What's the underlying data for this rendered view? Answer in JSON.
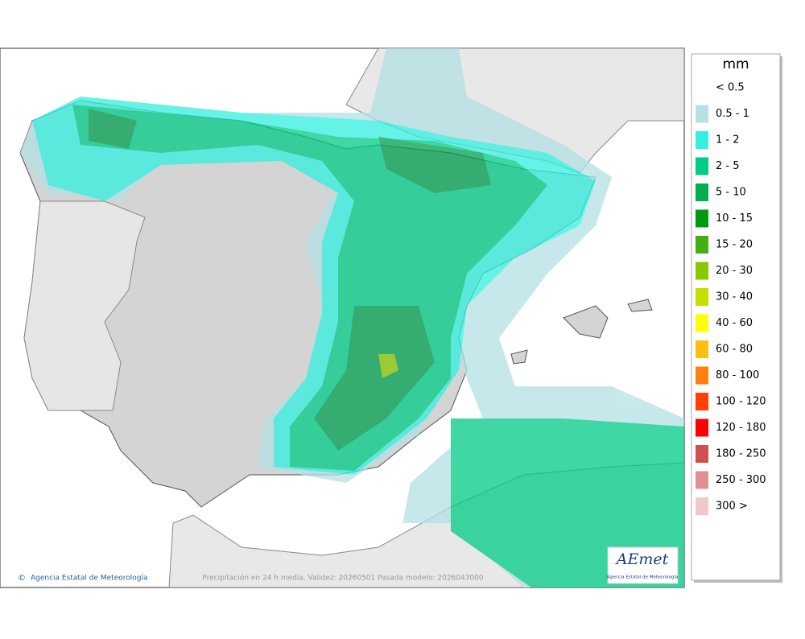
{
  "legend": {
    "title": "mm",
    "items": [
      {
        "label": "< 0.5",
        "color": "#ffffff"
      },
      {
        "label": "0.5 - 1",
        "color": "#b4e1e4"
      },
      {
        "label": "1 - 2",
        "color": "#33f0e0"
      },
      {
        "label": "2 - 5",
        "color": "#00cc88"
      },
      {
        "label": "5 - 10",
        "color": "#00b050"
      },
      {
        "label": "10 - 15",
        "color": "#009a10"
      },
      {
        "label": "15 - 20",
        "color": "#44b010"
      },
      {
        "label": "20 - 30",
        "color": "#88c800"
      },
      {
        "label": "30 - 40",
        "color": "#c4e000"
      },
      {
        "label": "40 - 60",
        "color": "#ffff00"
      },
      {
        "label": "60 - 80",
        "color": "#ffbf10"
      },
      {
        "label": "80 - 100",
        "color": "#ff8010"
      },
      {
        "label": "100 - 120",
        "color": "#ff4000"
      },
      {
        "label": "120 - 180",
        "color": "#ff0000"
      },
      {
        "label": "180 - 250",
        "color": "#d05050"
      },
      {
        "label": "250 - 300",
        "color": "#e09090"
      },
      {
        "label": "300 >",
        "color": "#f0c8c8"
      }
    ]
  },
  "credit": "Agencia Estatal de Meteorología",
  "caption": "Precipitación en 24 h media. Validez: 20260501 Pasada modelo: 2026043000",
  "logo": {
    "name": "AEmet",
    "subtitle": "Agencia Estatal de Meteorología"
  }
}
